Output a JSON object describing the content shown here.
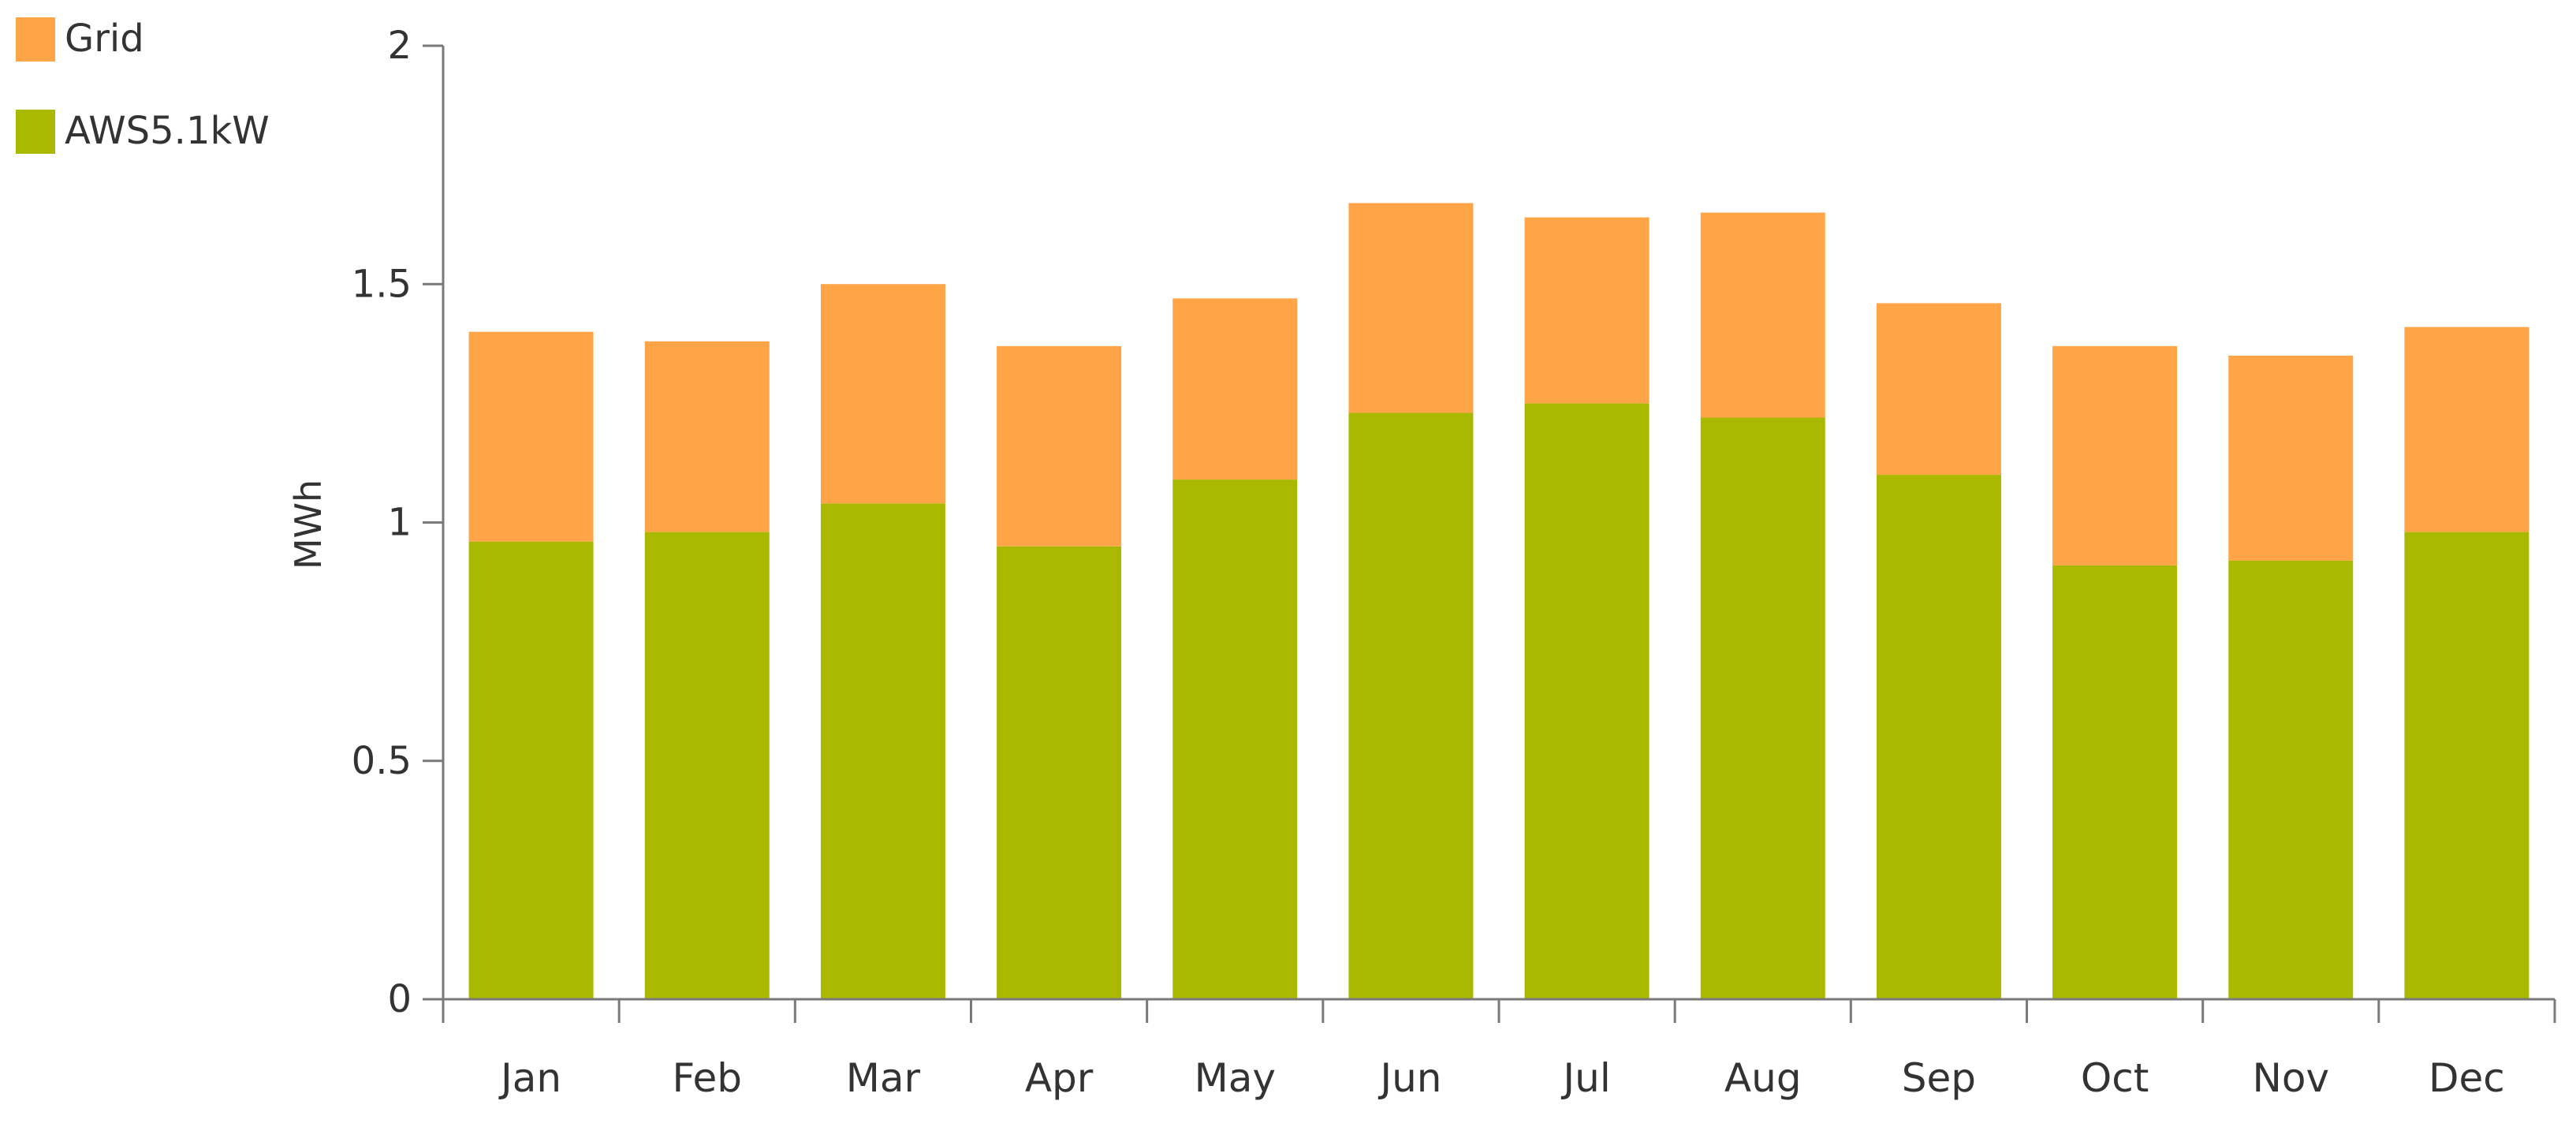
{
  "chart_data": {
    "type": "bar",
    "stacked": true,
    "title": "",
    "xlabel": "",
    "ylabel": "MWh",
    "ylim": [
      0,
      2
    ],
    "yticks": [
      "0",
      "0.5",
      "1",
      "1.5",
      "2"
    ],
    "ytick_values": [
      0,
      0.5,
      1,
      1.5,
      2
    ],
    "grid": false,
    "legend_position": "top-left",
    "categories": [
      "Jan",
      "Feb",
      "Mar",
      "Apr",
      "May",
      "Jun",
      "Jul",
      "Aug",
      "Sep",
      "Oct",
      "Nov",
      "Dec"
    ],
    "series": [
      {
        "name": "AWS5.1kW",
        "color": "#a8b900",
        "values": [
          0.96,
          0.98,
          1.04,
          0.95,
          1.09,
          1.23,
          1.25,
          1.22,
          1.1,
          0.91,
          0.92,
          0.98
        ]
      },
      {
        "name": "Grid",
        "color": "#ffa447",
        "values": [
          0.44,
          0.4,
          0.46,
          0.42,
          0.38,
          0.44,
          0.39,
          0.43,
          0.36,
          0.46,
          0.43,
          0.43
        ]
      }
    ],
    "legend": [
      {
        "name": "Grid",
        "color": "#ffa447"
      },
      {
        "name": "AWS5.1kW",
        "color": "#a8b900"
      }
    ],
    "axis_color": "#7a7a7a"
  }
}
